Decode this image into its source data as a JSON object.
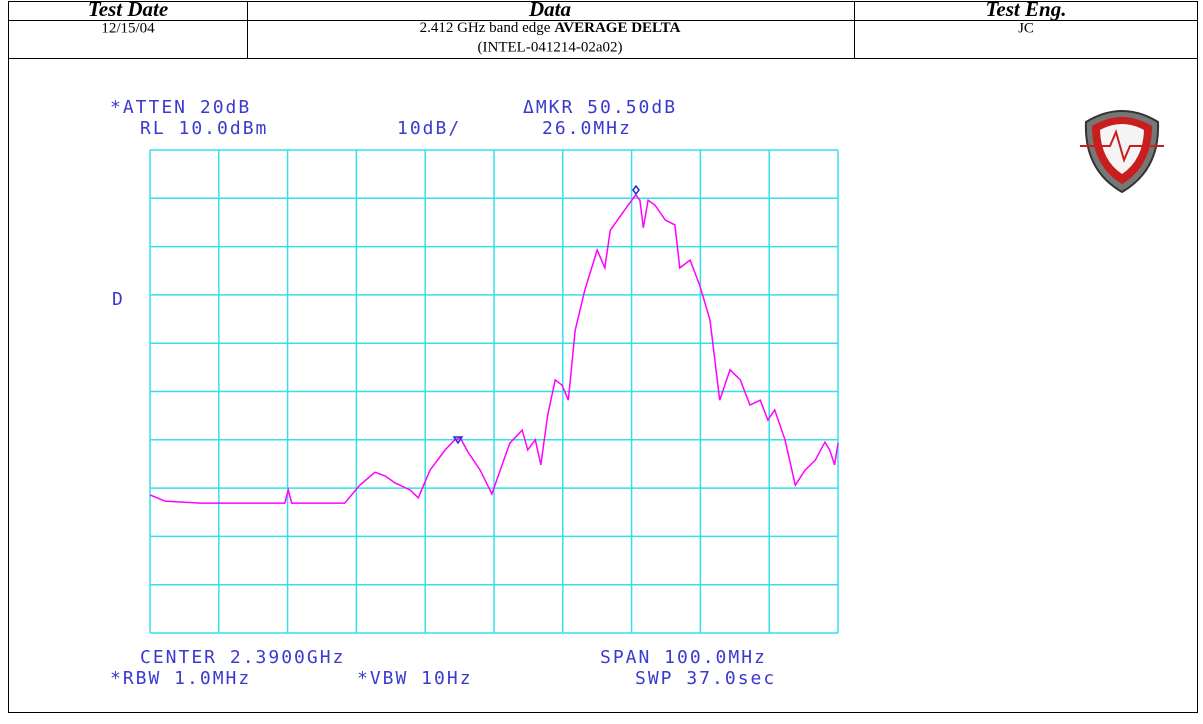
{
  "header": {
    "date": "Test Date",
    "data": "Data",
    "engineer": "Test Eng."
  },
  "row": {
    "date": "12/15/04",
    "data_plain": "2.412 GHz band edge",
    "data_bold": "AVERAGE DELTA",
    "data_id": "(INTEL-041214-02a02)",
    "engineer": "JC"
  },
  "plot": {
    "atten": "*ATTEN 20dB",
    "ref_level": "RL 10.0dBm",
    "scale": "10dB/",
    "marker": "ΔMKR 50.50dB",
    "marker_freq": "26.0MHz",
    "detector": "D",
    "center": "CENTER 2.3900GHz",
    "span": "SPAN 100.0MHz",
    "rbw": "*RBW 1.0MHz",
    "vbw": "*VBW 10Hz",
    "sweep": "SWP 37.0sec",
    "trace": {
      "color": "#ff00ff",
      "xlim": [
        2340,
        2440
      ],
      "ylim": [
        -90,
        10
      ],
      "x": [
        2340.0,
        2342.2,
        2347.3,
        2359.6,
        2360.1,
        2360.6,
        2368.3,
        2370.5,
        2372.7,
        2374.2,
        2375.6,
        2377.8,
        2379.0,
        2380.7,
        2382.9,
        2384.3,
        2385.1,
        2386.2,
        2388.0,
        2389.7,
        2390.9,
        2392.3,
        2394.1,
        2394.9,
        2396.0,
        2396.8,
        2397.8,
        2398.9,
        2399.9,
        2400.8,
        2401.8,
        2403.2,
        2405.0,
        2406.1,
        2406.9,
        2409.0,
        2410.6,
        2411.2,
        2411.7,
        2412.4,
        2413.4,
        2414.9,
        2416.3,
        2417.0,
        2418.5,
        2419.9,
        2421.4,
        2422.8,
        2424.3,
        2425.8,
        2427.2,
        2428.7,
        2429.8,
        2430.8,
        2432.3,
        2433.8,
        2435.2,
        2436.7,
        2438.1,
        2438.8,
        2439.5,
        2440.0
      ],
      "y": [
        -61.4,
        -62.7,
        -63.1,
        -63.1,
        -60.4,
        -63.1,
        -63.1,
        -59.4,
        -56.7,
        -57.5,
        -58.9,
        -60.4,
        -62.0,
        -56.3,
        -52.1,
        -50.0,
        -49.6,
        -52.5,
        -56.3,
        -61.2,
        -56.3,
        -50.7,
        -48.0,
        -52.1,
        -50.0,
        -55.2,
        -44.9,
        -37.6,
        -38.7,
        -41.8,
        -27.3,
        -19.0,
        -10.7,
        -14.4,
        -6.6,
        -2.4,
        0.7,
        -0.4,
        -6.1,
        -0.4,
        -1.4,
        -4.5,
        -5.5,
        -14.4,
        -12.8,
        -18.0,
        -25.2,
        -41.8,
        -35.5,
        -37.6,
        -42.8,
        -41.8,
        -45.9,
        -43.8,
        -50.0,
        -59.4,
        -56.3,
        -54.2,
        -50.5,
        -52.1,
        -55.2,
        -50.7
      ]
    }
  }
}
